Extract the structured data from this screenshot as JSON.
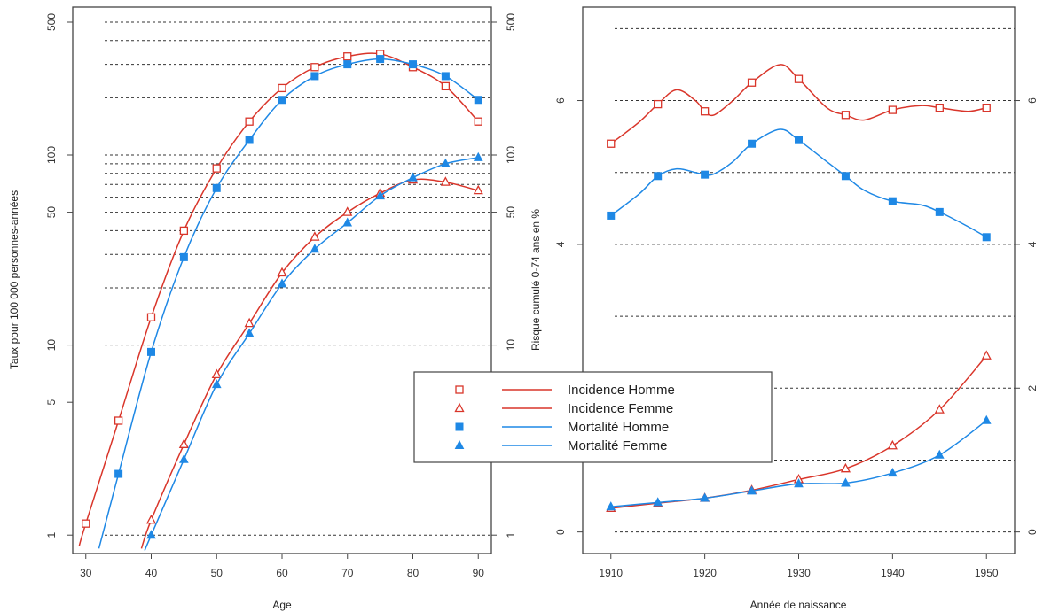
{
  "colors": {
    "incidence": "#d9352a",
    "mortality": "#1e88e5",
    "grid": "#333333",
    "frame": "#444444"
  },
  "chart_data": [
    {
      "type": "line",
      "xlabel": "Age",
      "ylabel": "Taux pour 100 000 personnes-années",
      "y_scale": "log",
      "xlim": [
        28,
        92
      ],
      "ylim": [
        0.8,
        600
      ],
      "x_ticks": [
        "30",
        "40",
        "50",
        "60",
        "70",
        "80",
        "90"
      ],
      "y_ticks": [
        "1",
        "5",
        "10",
        "50",
        "100",
        "500"
      ],
      "y_gridlines": [
        1,
        10,
        20,
        30,
        40,
        50,
        60,
        70,
        80,
        90,
        100,
        200,
        300,
        400,
        500
      ],
      "grid": true,
      "series": [
        {
          "name": "Incidence Homme",
          "marker": "open-square",
          "color": "incidence",
          "points": [
            [
              30,
              1.15
            ],
            [
              35,
              4
            ],
            [
              40,
              14
            ],
            [
              45,
              40
            ],
            [
              50,
              85
            ],
            [
              55,
              150
            ],
            [
              60,
              225
            ],
            [
              65,
              290
            ],
            [
              70,
              330
            ],
            [
              75,
              340
            ],
            [
              80,
              290
            ],
            [
              85,
              230
            ],
            [
              90,
              150
            ]
          ],
          "curve": [
            [
              29,
              0.88
            ],
            [
              30,
              1.15
            ],
            [
              35,
              4
            ],
            [
              40,
              14
            ],
            [
              45,
              40
            ],
            [
              50,
              85
            ],
            [
              55,
              150
            ],
            [
              60,
              225
            ],
            [
              65,
              290
            ],
            [
              70,
              330
            ],
            [
              75,
              340
            ],
            [
              80,
              290
            ],
            [
              85,
              230
            ],
            [
              90,
              150
            ]
          ]
        },
        {
          "name": "Incidence Femme",
          "marker": "open-triangle",
          "color": "incidence",
          "points": [
            [
              40,
              1.2
            ],
            [
              45,
              3
            ],
            [
              50,
              7
            ],
            [
              55,
              13
            ],
            [
              60,
              24
            ],
            [
              65,
              37
            ],
            [
              70,
              50
            ],
            [
              75,
              63
            ],
            [
              80,
              74
            ],
            [
              85,
              72
            ],
            [
              90,
              65
            ]
          ],
          "curve": [
            [
              38.5,
              0.85
            ],
            [
              40,
              1.2
            ],
            [
              45,
              3
            ],
            [
              50,
              7
            ],
            [
              55,
              13
            ],
            [
              60,
              24
            ],
            [
              65,
              37
            ],
            [
              70,
              50
            ],
            [
              75,
              63
            ],
            [
              80,
              74
            ],
            [
              85,
              72
            ],
            [
              90,
              65
            ]
          ]
        },
        {
          "name": "Mortalité Homme",
          "marker": "filled-square",
          "color": "mortality",
          "points": [
            [
              35,
              2.1
            ],
            [
              40,
              9.2
            ],
            [
              45,
              29
            ],
            [
              50,
              67
            ],
            [
              55,
              120
            ],
            [
              60,
              195
            ],
            [
              65,
              260
            ],
            [
              70,
              300
            ],
            [
              75,
              320
            ],
            [
              80,
              300
            ],
            [
              85,
              260
            ],
            [
              90,
              195
            ]
          ],
          "curve": [
            [
              32,
              0.85
            ],
            [
              35,
              2.1
            ],
            [
              40,
              9.2
            ],
            [
              45,
              29
            ],
            [
              50,
              67
            ],
            [
              55,
              120
            ],
            [
              60,
              195
            ],
            [
              65,
              260
            ],
            [
              70,
              300
            ],
            [
              75,
              320
            ],
            [
              80,
              300
            ],
            [
              85,
              260
            ],
            [
              90,
              195
            ]
          ]
        },
        {
          "name": "Mortalité Femme",
          "marker": "filled-triangle",
          "color": "mortality",
          "points": [
            [
              40,
              1
            ],
            [
              45,
              2.5
            ],
            [
              50,
              6.2
            ],
            [
              55,
              11.5
            ],
            [
              60,
              21
            ],
            [
              65,
              32
            ],
            [
              70,
              44
            ],
            [
              75,
              61
            ],
            [
              80,
              76
            ],
            [
              85,
              90
            ],
            [
              90,
              97
            ]
          ],
          "curve": [
            [
              39,
              0.83
            ],
            [
              40,
              1
            ],
            [
              45,
              2.5
            ],
            [
              50,
              6.2
            ],
            [
              55,
              11.5
            ],
            [
              60,
              21
            ],
            [
              65,
              32
            ],
            [
              70,
              44
            ],
            [
              75,
              61
            ],
            [
              80,
              76
            ],
            [
              85,
              90
            ],
            [
              90,
              97
            ]
          ]
        }
      ]
    },
    {
      "type": "line",
      "xlabel": "Année de naissance",
      "ylabel": "Risque cumulé 0-74 ans en %",
      "xlim": [
        1907,
        1953
      ],
      "ylim": [
        -0.3,
        7.3
      ],
      "x_ticks": [
        "1910",
        "1920",
        "1930",
        "1940",
        "1950"
      ],
      "y_ticks": [
        "0",
        "2",
        "4",
        "6"
      ],
      "y_gridlines": [
        0,
        1,
        2,
        3,
        4,
        5,
        6,
        7
      ],
      "grid": true,
      "series": [
        {
          "name": "Incidence Homme",
          "marker": "open-square",
          "color": "incidence",
          "points": [
            [
              1910,
              5.4
            ],
            [
              1915,
              5.95
            ],
            [
              1920,
              5.85
            ],
            [
              1925,
              6.25
            ],
            [
              1930,
              6.3
            ],
            [
              1935,
              5.8
            ],
            [
              1940,
              5.87
            ],
            [
              1945,
              5.9
            ],
            [
              1950,
              5.9
            ]
          ],
          "curve": [
            [
              1910,
              5.4
            ],
            [
              1913,
              5.7
            ],
            [
              1915,
              5.95
            ],
            [
              1917,
              6.15
            ],
            [
              1919,
              6.0
            ],
            [
              1920,
              5.85
            ],
            [
              1921,
              5.8
            ],
            [
              1923,
              6.0
            ],
            [
              1925,
              6.25
            ],
            [
              1928,
              6.5
            ],
            [
              1930,
              6.3
            ],
            [
              1933,
              5.9
            ],
            [
              1935,
              5.8
            ],
            [
              1937,
              5.73
            ],
            [
              1940,
              5.87
            ],
            [
              1943,
              5.93
            ],
            [
              1945,
              5.9
            ],
            [
              1948,
              5.85
            ],
            [
              1950,
              5.9
            ]
          ]
        },
        {
          "name": "Incidence Femme",
          "marker": "open-triangle",
          "color": "incidence",
          "points": [
            [
              1910,
              0.33
            ],
            [
              1915,
              0.4
            ],
            [
              1920,
              0.47
            ],
            [
              1925,
              0.58
            ],
            [
              1930,
              0.73
            ],
            [
              1935,
              0.88
            ],
            [
              1940,
              1.2
            ],
            [
              1945,
              1.7
            ],
            [
              1950,
              2.45
            ]
          ],
          "curve": [
            [
              1910,
              0.33
            ],
            [
              1915,
              0.4
            ],
            [
              1920,
              0.47
            ],
            [
              1925,
              0.58
            ],
            [
              1930,
              0.73
            ],
            [
              1935,
              0.88
            ],
            [
              1940,
              1.2
            ],
            [
              1945,
              1.7
            ],
            [
              1950,
              2.45
            ]
          ]
        },
        {
          "name": "Mortalité Homme",
          "marker": "filled-square",
          "color": "mortality",
          "points": [
            [
              1910,
              4.4
            ],
            [
              1915,
              4.95
            ],
            [
              1920,
              4.97
            ],
            [
              1925,
              5.4
            ],
            [
              1930,
              5.45
            ],
            [
              1935,
              4.95
            ],
            [
              1940,
              4.6
            ],
            [
              1945,
              4.45
            ],
            [
              1950,
              4.1
            ]
          ],
          "curve": [
            [
              1910,
              4.4
            ],
            [
              1913,
              4.7
            ],
            [
              1915,
              4.95
            ],
            [
              1917,
              5.05
            ],
            [
              1919,
              5.0
            ],
            [
              1920,
              4.97
            ],
            [
              1921,
              4.98
            ],
            [
              1923,
              5.15
            ],
            [
              1925,
              5.4
            ],
            [
              1928,
              5.6
            ],
            [
              1930,
              5.45
            ],
            [
              1933,
              5.15
            ],
            [
              1935,
              4.95
            ],
            [
              1937,
              4.75
            ],
            [
              1940,
              4.6
            ],
            [
              1943,
              4.55
            ],
            [
              1945,
              4.45
            ],
            [
              1948,
              4.25
            ],
            [
              1950,
              4.1
            ]
          ]
        },
        {
          "name": "Mortalité Femme",
          "marker": "filled-triangle",
          "color": "mortality",
          "points": [
            [
              1910,
              0.35
            ],
            [
              1915,
              0.41
            ],
            [
              1920,
              0.47
            ],
            [
              1925,
              0.57
            ],
            [
              1930,
              0.67
            ],
            [
              1935,
              0.68
            ],
            [
              1940,
              0.82
            ],
            [
              1945,
              1.07
            ],
            [
              1950,
              1.55
            ]
          ],
          "curve": [
            [
              1910,
              0.35
            ],
            [
              1915,
              0.41
            ],
            [
              1920,
              0.47
            ],
            [
              1925,
              0.57
            ],
            [
              1930,
              0.67
            ],
            [
              1935,
              0.68
            ],
            [
              1940,
              0.82
            ],
            [
              1945,
              1.07
            ],
            [
              1950,
              1.55
            ]
          ]
        }
      ]
    }
  ],
  "legend": {
    "placement": "center-bottom",
    "entries": [
      {
        "label": "Incidence Homme",
        "marker": "open-square",
        "color": "incidence"
      },
      {
        "label": "Incidence Femme",
        "marker": "open-triangle",
        "color": "incidence"
      },
      {
        "label": "Mortalité Homme",
        "marker": "filled-square",
        "color": "mortality"
      },
      {
        "label": "Mortalité Femme",
        "marker": "filled-triangle",
        "color": "mortality"
      }
    ]
  }
}
